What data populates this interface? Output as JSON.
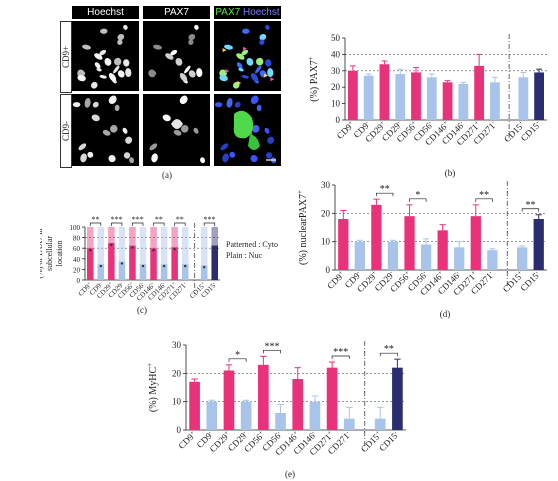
{
  "panel_a": {
    "channels": [
      "Hoechst",
      "PAX7"
    ],
    "merge_label_green": "PAX7",
    "merge_label_blue": " Hoechst",
    "rows": [
      "CD9+",
      "CD9-"
    ],
    "letter": "(a)"
  },
  "chart_data": [
    {
      "id": "b",
      "type": "bar",
      "letter": "(b)",
      "ylabel": "(%) PAX7+",
      "ylim": [
        0,
        50
      ],
      "ticks": [
        0,
        10,
        20,
        30,
        40,
        50
      ],
      "categories": [
        "CD9+",
        "CD9-",
        "CD29+",
        "CD29-",
        "CD56+",
        "CD56-",
        "CD146+",
        "CD146-",
        "CD271+",
        "CD271-",
        "CD15+",
        "CD15-"
      ],
      "values": [
        30,
        27,
        34,
        28,
        29,
        26,
        23,
        22,
        33,
        23,
        26,
        29
      ],
      "errors": [
        3,
        1,
        2,
        3,
        3,
        2,
        1,
        1,
        7,
        3,
        3,
        2
      ],
      "colors": [
        "#e8337a",
        "#a8c4ea",
        "#e8337a",
        "#a8c4ea",
        "#e8337a",
        "#a8c4ea",
        "#e8337a",
        "#a8c4ea",
        "#e8337a",
        "#a8c4ea",
        "#a8c4ea",
        "#2a2e6e"
      ],
      "gridlines": [
        30,
        40
      ],
      "divider_after": 10
    },
    {
      "id": "c",
      "type": "bar",
      "letter": "(c)",
      "ylabel": "(%) of PAX7 in subcellular location",
      "ylim": [
        0,
        100
      ],
      "ticks": [
        0,
        20,
        40,
        60,
        80,
        100
      ],
      "categories": [
        "CD9+",
        "CD9-",
        "CD29+",
        "CD29-",
        "CD56+",
        "CD56-",
        "CD146+",
        "CD146-",
        "CD271+",
        "CD271-",
        "CD15+",
        "CD15-"
      ],
      "values": [
        60,
        30,
        70,
        35,
        65,
        30,
        60,
        30,
        62,
        30,
        28,
        65
      ],
      "totals": [
        100,
        100,
        100,
        100,
        100,
        100,
        100,
        100,
        100,
        100,
        100,
        100
      ],
      "colors": [
        "#e8337a",
        "#a8c4ea",
        "#e8337a",
        "#a8c4ea",
        "#e8337a",
        "#a8c4ea",
        "#e8337a",
        "#a8c4ea",
        "#e8337a",
        "#a8c4ea",
        "#a8c4ea",
        "#2a2e6e"
      ],
      "gridlines": [
        60,
        80
      ],
      "legend": [
        "Patterned : Cyto",
        "Plain : Nuc"
      ],
      "sig": [
        {
          "pair": [
            0,
            1
          ],
          "label": "**"
        },
        {
          "pair": [
            2,
            3
          ],
          "label": "***"
        },
        {
          "pair": [
            4,
            5
          ],
          "label": "***"
        },
        {
          "pair": [
            6,
            7
          ],
          "label": "**"
        },
        {
          "pair": [
            8,
            9
          ],
          "label": "**"
        },
        {
          "pair": [
            10,
            11
          ],
          "label": "***"
        }
      ],
      "divider_after": 10
    },
    {
      "id": "d",
      "type": "bar",
      "letter": "(d)",
      "ylabel": "(%) nuclearPAX7+",
      "ylim": [
        0,
        30
      ],
      "ticks": [
        0,
        10,
        20,
        30
      ],
      "categories": [
        "CD9+",
        "CD9-",
        "CD29+",
        "CD29-",
        "CD56+",
        "CD56-",
        "CD146+",
        "CD146-",
        "CD271+",
        "CD271-",
        "CD15+",
        "CD15-"
      ],
      "values": [
        18,
        10,
        23,
        10,
        19,
        9,
        14,
        8,
        19,
        7,
        8,
        18
      ],
      "errors": [
        3,
        0.5,
        2,
        0.5,
        4,
        2,
        2,
        2,
        4,
        0.5,
        0.5,
        1.5
      ],
      "colors": [
        "#e8337a",
        "#a8c4ea",
        "#e8337a",
        "#a8c4ea",
        "#e8337a",
        "#a8c4ea",
        "#e8337a",
        "#a8c4ea",
        "#e8337a",
        "#a8c4ea",
        "#a8c4ea",
        "#2a2e6e"
      ],
      "gridlines": [
        10,
        20
      ],
      "sig": [
        {
          "pair": [
            2,
            3
          ],
          "label": "**"
        },
        {
          "pair": [
            4,
            5
          ],
          "label": "*"
        },
        {
          "pair": [
            8,
            9
          ],
          "label": "**"
        },
        {
          "pair": [
            10,
            11
          ],
          "label": "**"
        }
      ],
      "divider_after": 10
    },
    {
      "id": "e",
      "type": "bar",
      "letter": "(e)",
      "ylabel": "(%) MyHC+",
      "ylim": [
        0,
        30
      ],
      "ticks": [
        0,
        10,
        20,
        30
      ],
      "categories": [
        "CD9+",
        "CD9-",
        "CD29+",
        "CD29-",
        "CD56+",
        "CD56-",
        "CD146+",
        "CD146-",
        "CD271+",
        "CD271-",
        "CD15+",
        "CD15-"
      ],
      "values": [
        17,
        10,
        21,
        10,
        23,
        6,
        18,
        10,
        22,
        4,
        4,
        22
      ],
      "errors": [
        1,
        0.5,
        2,
        0.5,
        3,
        3,
        4,
        2,
        2,
        4,
        4,
        3
      ],
      "colors": [
        "#e8337a",
        "#a8c4ea",
        "#e8337a",
        "#a8c4ea",
        "#e8337a",
        "#a8c4ea",
        "#e8337a",
        "#a8c4ea",
        "#e8337a",
        "#a8c4ea",
        "#a8c4ea",
        "#2a2e6e"
      ],
      "gridlines": [
        10,
        20
      ],
      "sig": [
        {
          "pair": [
            2,
            3
          ],
          "label": "*"
        },
        {
          "pair": [
            4,
            5
          ],
          "label": "***"
        },
        {
          "pair": [
            8,
            9
          ],
          "label": "***"
        },
        {
          "pair": [
            10,
            11
          ],
          "label": "**"
        }
      ],
      "divider_after": 10
    }
  ]
}
